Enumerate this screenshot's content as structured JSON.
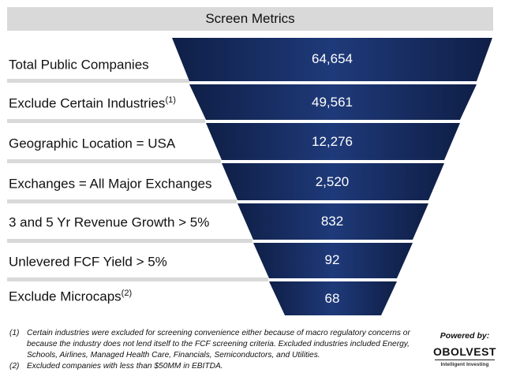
{
  "title": "Screen Metrics",
  "rows": [
    {
      "label": "Total Public Companies",
      "sup": "",
      "value": "64,654"
    },
    {
      "label": "Exclude Certain Industries",
      "sup": "(1)",
      "value": "49,561"
    },
    {
      "label": "Geographic Location = USA",
      "sup": "",
      "value": "12,276"
    },
    {
      "label": "Exchanges = All Major Exchanges",
      "sup": "",
      "value": "2,520"
    },
    {
      "label": "3 and 5 Yr Revenue Growth > 5%",
      "sup": "",
      "value": "832"
    },
    {
      "label": "Unlevered FCF Yield > 5%",
      "sup": "",
      "value": "92"
    },
    {
      "label": "Exclude Microcaps",
      "sup": "(2)",
      "value": "68"
    }
  ],
  "footnotes": [
    {
      "num": "(1)",
      "text": "Certain industries were excluded for screening convenience either because of macro regulatory concerns or because the industry does not lend itself to the FCF screening criteria.  Excluded industries included Energy, Schools, Airlines, Managed Health Care, Financials, Semiconductors, and Utilities."
    },
    {
      "num": "(2)",
      "text": "Excluded companies with less than $50MM in EBITDA."
    }
  ],
  "brand": {
    "powered_by": "Powered by:",
    "name": "OBOLVEST",
    "tagline": "Intelligent Investing"
  },
  "colors": {
    "funnel_dark": "#0f1f47",
    "funnel_mid": "#1f3a7a",
    "header_bg": "#d9d9d9",
    "row_bar": "#d9d9d9"
  }
}
